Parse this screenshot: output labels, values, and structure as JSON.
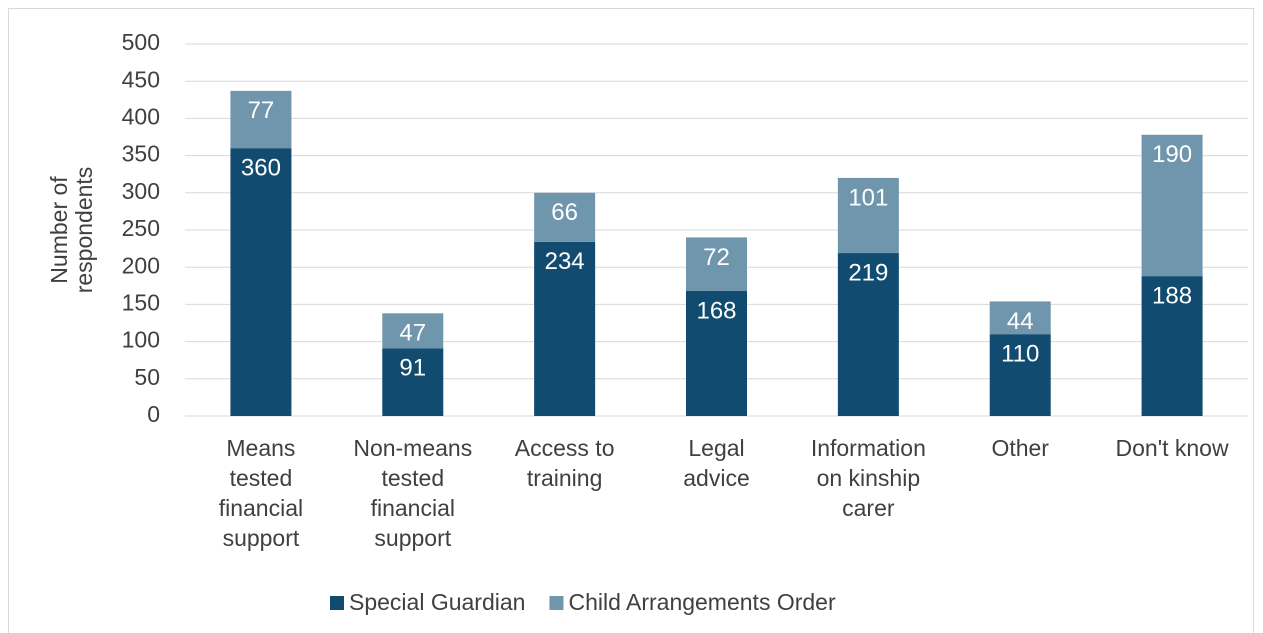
{
  "chart_data": {
    "type": "stacked_bar",
    "y_label": "Number of respondents",
    "categories": [
      "Means tested financial support",
      "Non-means tested financial support",
      "Access to training",
      "Legal advice",
      "Information on kinship carer",
      "Other",
      "Don't know"
    ],
    "series": [
      {
        "name": "Special Guardian",
        "color": "#114b6f",
        "values": [
          360,
          91,
          234,
          168,
          219,
          110,
          188
        ]
      },
      {
        "name": "Child Arrangements Order",
        "color": "#7096ae",
        "values": [
          77,
          47,
          66,
          72,
          101,
          44,
          190
        ]
      }
    ],
    "ylim": [
      0,
      500
    ],
    "yticks": [
      0,
      50,
      100,
      150,
      200,
      250,
      300,
      350,
      400,
      450,
      500
    ],
    "grid": true,
    "legend": "bottom"
  }
}
